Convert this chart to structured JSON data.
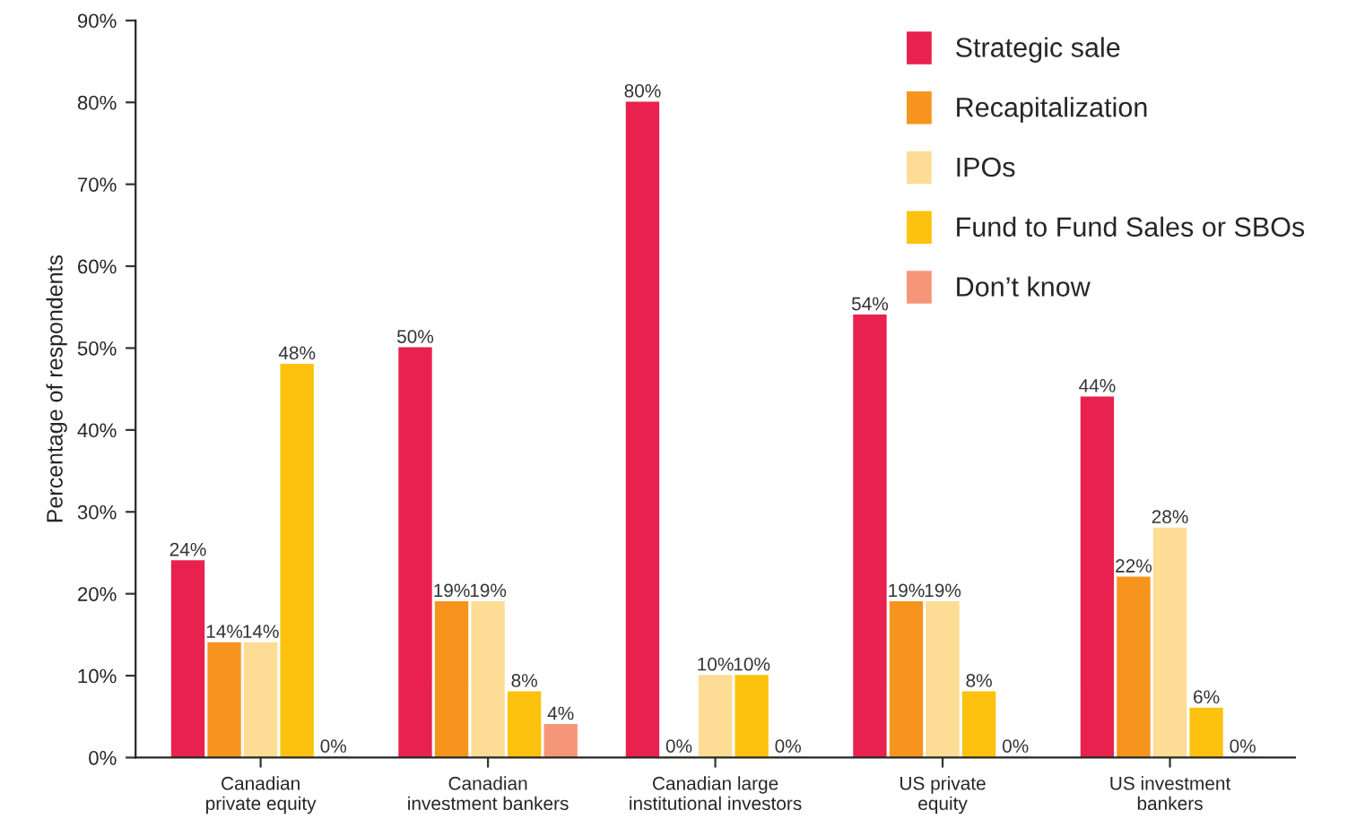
{
  "chart_data": {
    "type": "bar",
    "ylabel": "Percentage of respondents",
    "categories": [
      "Canadian\nprivate equity",
      "Canadian\ninvestment bankers",
      "Canadian large\ninstitutional investors",
      "US private\nequity",
      "US investment\nbankers"
    ],
    "series": [
      {
        "name": "Strategic sale",
        "color": "#e8214e",
        "values": [
          24,
          50,
          80,
          54,
          44
        ],
        "value_labels": [
          "24%",
          "50%",
          "80%",
          "54%",
          "44%"
        ]
      },
      {
        "name": "Recapitalization",
        "color": "#f7941d",
        "values": [
          14,
          19,
          0,
          19,
          22
        ],
        "value_labels": [
          "14%",
          "19%",
          "0%",
          "19%",
          "22%"
        ]
      },
      {
        "name": "IPOs",
        "color": "#fddc95",
        "values": [
          14,
          19,
          10,
          19,
          28
        ],
        "value_labels": [
          "14%",
          "19%",
          "10%",
          "19%",
          "28%"
        ]
      },
      {
        "name": "Fund to Fund Sales or SBOs",
        "color": "#fdc20e",
        "values": [
          48,
          8,
          10,
          8,
          6
        ],
        "value_labels": [
          "48%",
          "8%",
          "10%",
          "8%",
          "6%"
        ]
      },
      {
        "name": "Don’t know",
        "color": "#f69679",
        "values": [
          0,
          4,
          0,
          0,
          0
        ],
        "value_labels": [
          "0%",
          "4%",
          "0%",
          "0%",
          "0%"
        ]
      }
    ],
    "ylim": [
      0,
      90
    ],
    "yticks": [
      {
        "value": 0,
        "label": "0%"
      },
      {
        "value": 10,
        "label": "10%"
      },
      {
        "value": 20,
        "label": "20%"
      },
      {
        "value": 30,
        "label": "30%"
      },
      {
        "value": 40,
        "label": "40%"
      },
      {
        "value": 50,
        "label": "50%"
      },
      {
        "value": 60,
        "label": "60%"
      },
      {
        "value": 70,
        "label": "70%"
      },
      {
        "value": 80,
        "label": "80%"
      },
      {
        "value": 90,
        "label": "90%"
      }
    ],
    "grid": false,
    "legend": "top right"
  }
}
